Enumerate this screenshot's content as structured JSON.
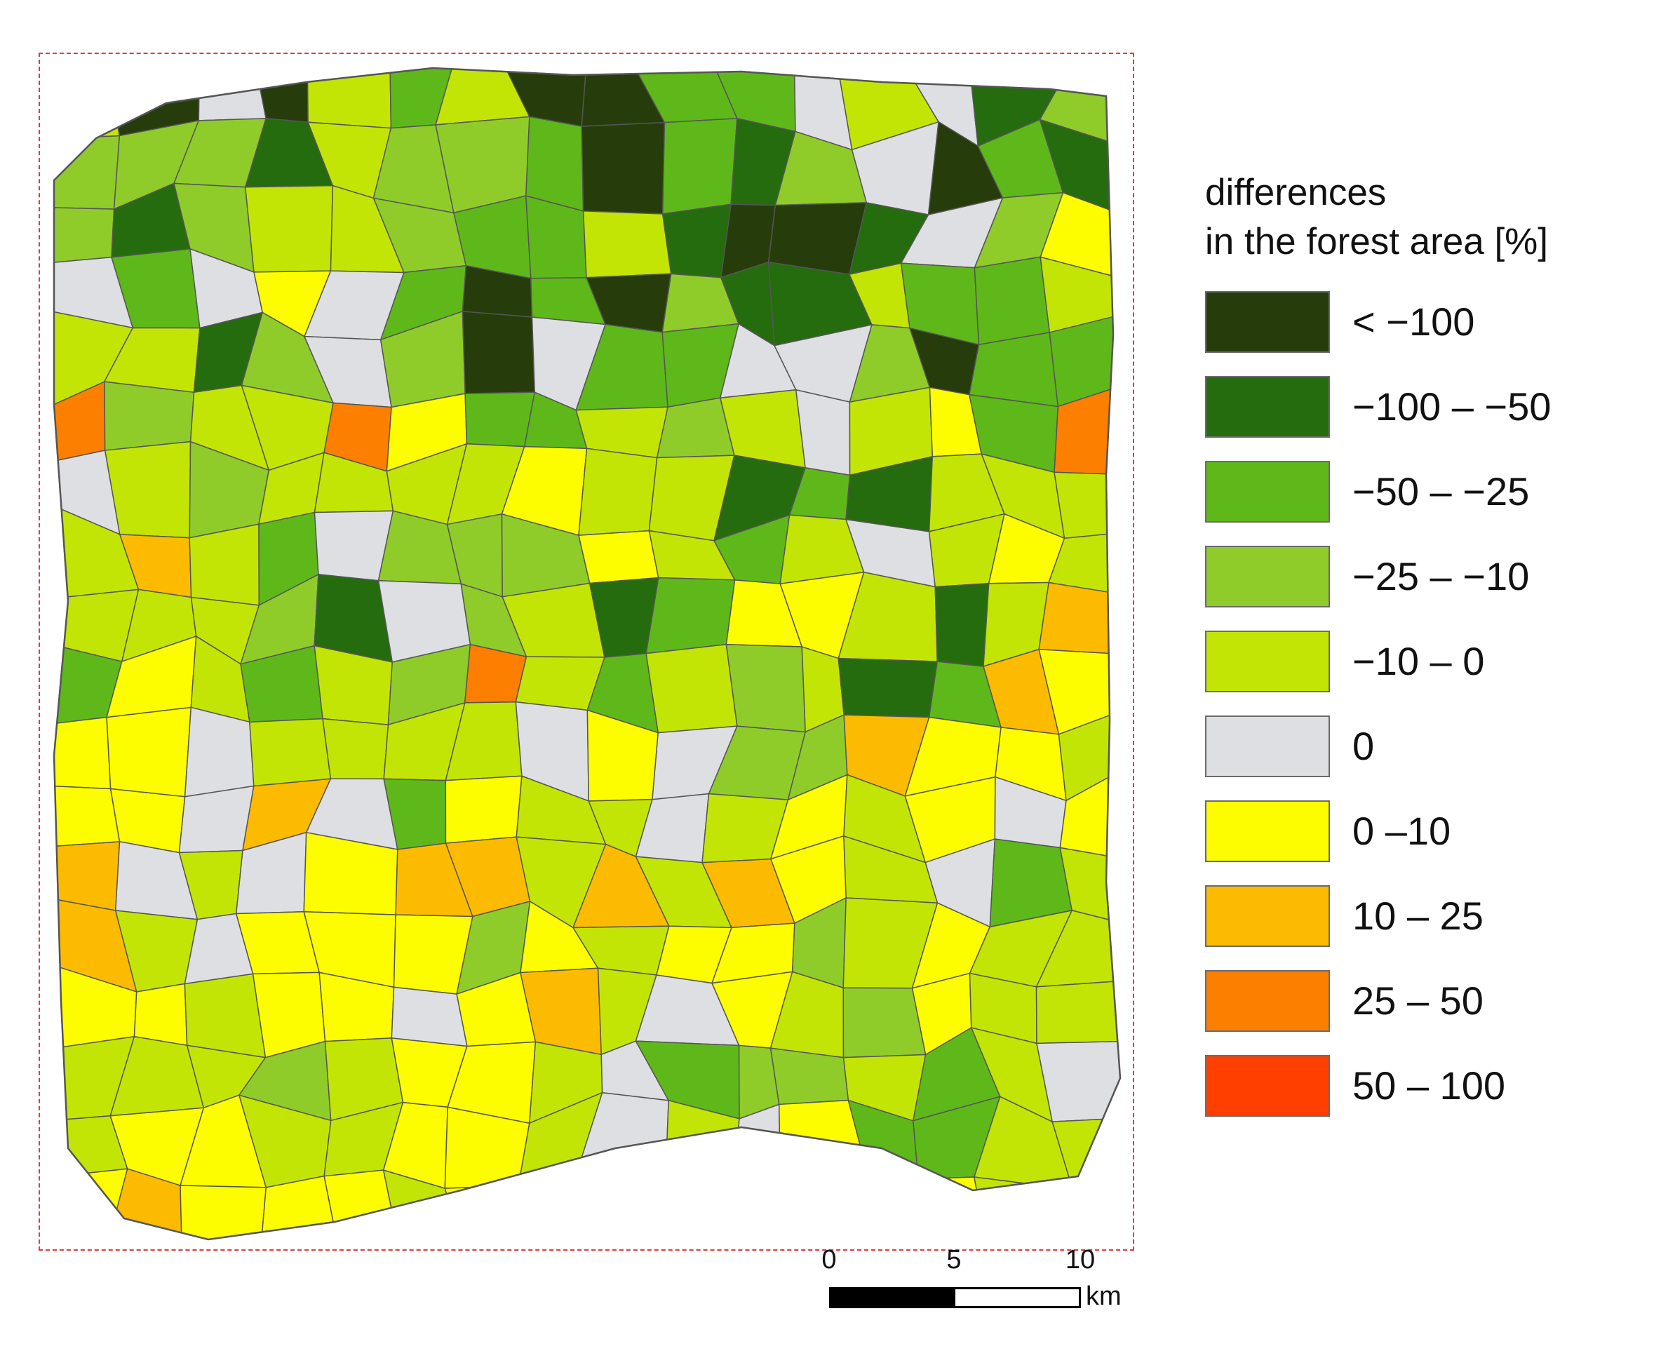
{
  "legend": {
    "title_line1": "differences",
    "title_line2": "in the forest area [%]",
    "items": [
      {
        "label": "< −100",
        "color": "#263d0b"
      },
      {
        "label": "−100 – −50",
        "color": "#256c0e"
      },
      {
        "label": "−50 – −25",
        "color": "#5fb81a"
      },
      {
        "label": "−25 – −10",
        "color": "#8fcc2a"
      },
      {
        "label": "−10 – 0",
        "color": "#c3e506"
      },
      {
        "label": "0",
        "color": "#dedfe2"
      },
      {
        "label": "0 –10",
        "color": "#fefd00"
      },
      {
        "label": "10 – 25",
        "color": "#fdbb00"
      },
      {
        "label": "25 – 50",
        "color": "#fd7f00"
      },
      {
        "label": "50 – 100",
        "color": "#fe3f00"
      }
    ]
  },
  "scale": {
    "tick_0": "0",
    "tick_5": "5",
    "tick_10": "10",
    "unit": "km"
  },
  "map": {
    "frame_color": "#e03b3b",
    "boundary_color": "#555555"
  }
}
